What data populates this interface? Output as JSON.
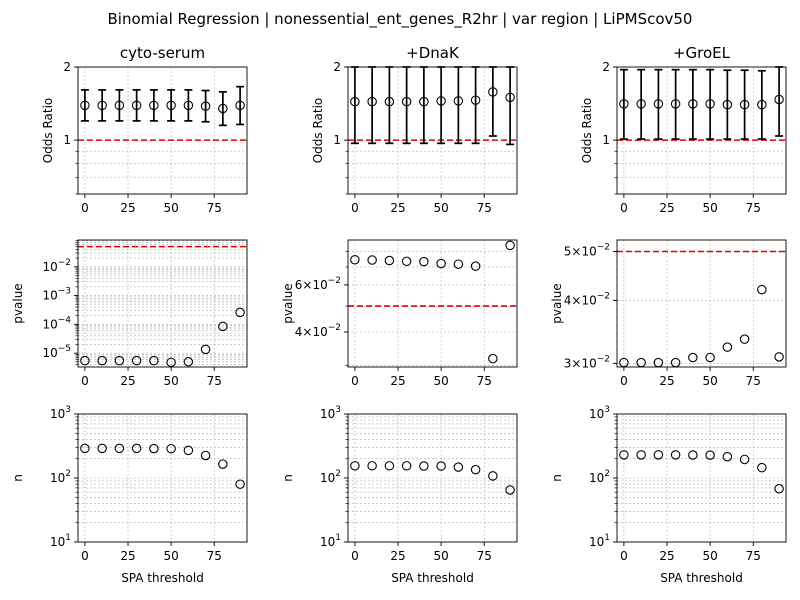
{
  "figure": {
    "title": "Binomial Regression | nonessential_ent_genes_R2hr | var region | LiPMScov50"
  },
  "chart_data": [
    {
      "type": "scatter",
      "panel": "odds-cyto-serum",
      "title": "cyto-serum",
      "xlabel": "",
      "ylabel": "Odds Ratio",
      "yscale": "log",
      "ylim": [
        0.6,
        2.0
      ],
      "xlim": [
        -4,
        94
      ],
      "yticks": [
        1,
        2
      ],
      "yticklabels": [
        "1",
        "2"
      ],
      "xticks": [
        0,
        25,
        50,
        75
      ],
      "xticklabels": [
        "0",
        "25",
        "50",
        "75"
      ],
      "reference_line": 1.0,
      "grid": true,
      "x": [
        0,
        10,
        20,
        30,
        40,
        50,
        60,
        70,
        80,
        90
      ],
      "y": [
        1.39,
        1.39,
        1.39,
        1.39,
        1.39,
        1.39,
        1.39,
        1.38,
        1.35,
        1.39
      ],
      "ci_low": [
        1.2,
        1.2,
        1.2,
        1.2,
        1.2,
        1.2,
        1.2,
        1.19,
        1.15,
        1.16
      ],
      "ci_high": [
        1.61,
        1.61,
        1.61,
        1.61,
        1.61,
        1.61,
        1.61,
        1.6,
        1.58,
        1.66
      ]
    },
    {
      "type": "scatter",
      "panel": "odds-dnak",
      "title": "+DnaK",
      "xlabel": "",
      "ylabel": "Odds Ratio",
      "yscale": "log",
      "ylim": [
        0.6,
        2.0
      ],
      "xlim": [
        -4,
        94
      ],
      "yticks": [
        1,
        2
      ],
      "yticklabels": [
        "1",
        "2"
      ],
      "xticks": [
        0,
        25,
        50,
        75
      ],
      "xticklabels": [
        "0",
        "25",
        "50",
        "75"
      ],
      "reference_line": 1.0,
      "grid": true,
      "x": [
        0,
        10,
        20,
        30,
        40,
        50,
        60,
        70,
        80,
        90
      ],
      "y": [
        1.44,
        1.44,
        1.44,
        1.44,
        1.44,
        1.45,
        1.45,
        1.46,
        1.58,
        1.5
      ],
      "ci_low": [
        0.97,
        0.97,
        0.97,
        0.97,
        0.97,
        0.97,
        0.97,
        0.97,
        1.04,
        0.96
      ],
      "ci_high": [
        2.0,
        2.0,
        2.0,
        2.0,
        2.0,
        2.0,
        2.0,
        2.0,
        2.0,
        2.0
      ]
    },
    {
      "type": "scatter",
      "panel": "odds-groel",
      "title": "+GroEL",
      "xlabel": "",
      "ylabel": "Odds Ratio",
      "yscale": "log",
      "ylim": [
        0.6,
        2.0
      ],
      "xlim": [
        -4,
        94
      ],
      "yticks": [
        1,
        2
      ],
      "yticklabels": [
        "1",
        "2"
      ],
      "xticks": [
        0,
        25,
        50,
        75
      ],
      "xticklabels": [
        "0",
        "25",
        "50",
        "75"
      ],
      "reference_line": 1.0,
      "grid": true,
      "x": [
        0,
        10,
        20,
        30,
        40,
        50,
        60,
        70,
        80,
        90
      ],
      "y": [
        1.41,
        1.41,
        1.41,
        1.41,
        1.41,
        1.41,
        1.4,
        1.4,
        1.4,
        1.47
      ],
      "ci_low": [
        1.01,
        1.01,
        1.01,
        1.01,
        1.01,
        1.01,
        1.01,
        1.01,
        1.01,
        1.04
      ],
      "ci_high": [
        1.95,
        1.95,
        1.95,
        1.95,
        1.95,
        1.95,
        1.94,
        1.94,
        1.93,
        2.0
      ]
    },
    {
      "type": "scatter",
      "panel": "pvalue-cyto-serum",
      "title": "",
      "xlabel": "",
      "ylabel": "pvalue",
      "yscale": "log",
      "ylim": [
        3.3e-06,
        0.085
      ],
      "xlim": [
        -4,
        94
      ],
      "yticks": [
        1e-05,
        0.0001,
        0.001,
        0.01
      ],
      "yticklabels": [
        "10",
        "10",
        "10",
        "10"
      ],
      "yticklabel_exponents": [
        "−5",
        "−4",
        "−3",
        "−2"
      ],
      "xticks": [
        0,
        25,
        50,
        75
      ],
      "xticklabels": [
        "0",
        "25",
        "50",
        "75"
      ],
      "reference_line": 0.05,
      "grid": true,
      "x": [
        0,
        10,
        20,
        30,
        40,
        50,
        60,
        70,
        80,
        90
      ],
      "y": [
        5.5e-06,
        5.5e-06,
        5.5e-06,
        5.5e-06,
        5.5e-06,
        4.8e-06,
        5e-06,
        1.35e-05,
        8.5e-05,
        0.00026
      ]
    },
    {
      "type": "scatter",
      "panel": "pvalue-dnak",
      "title": "",
      "xlabel": "",
      "ylabel": "pvalue",
      "yscale": "log",
      "ylim": [
        0.0296,
        0.0883
      ],
      "xlim": [
        -4,
        94
      ],
      "yticks": [
        0.04,
        0.06
      ],
      "yticklabels": [
        "4×10",
        "6×10"
      ],
      "yticklabel_exponents": [
        "−2",
        "−2"
      ],
      "xticks": [
        0,
        25,
        50,
        75
      ],
      "xticklabels": [
        "0",
        "25",
        "50",
        "75"
      ],
      "reference_line": 0.05,
      "grid": true,
      "x": [
        0,
        10,
        20,
        30,
        40,
        50,
        60,
        70,
        80,
        90
      ],
      "y": [
        0.0745,
        0.0743,
        0.074,
        0.0735,
        0.0733,
        0.0721,
        0.0717,
        0.0705,
        0.0318,
        0.0843
      ]
    },
    {
      "type": "scatter",
      "panel": "pvalue-groel",
      "title": "",
      "xlabel": "",
      "ylabel": "pvalue",
      "yscale": "log",
      "ylim": [
        0.0295,
        0.0527
      ],
      "xlim": [
        -4,
        94
      ],
      "yticks": [
        0.03,
        0.04,
        0.05
      ],
      "yticklabels": [
        "3×10",
        "4×10",
        "5×10"
      ],
      "yticklabel_exponents": [
        "−2",
        "−2",
        "−2"
      ],
      "xticks": [
        0,
        25,
        50,
        75
      ],
      "xticklabels": [
        "0",
        "25",
        "50",
        "75"
      ],
      "reference_line": 0.05,
      "grid": true,
      "x": [
        0,
        10,
        20,
        30,
        40,
        50,
        60,
        70,
        80,
        90
      ],
      "y": [
        0.0301,
        0.0301,
        0.0301,
        0.0301,
        0.0308,
        0.0308,
        0.0323,
        0.0335,
        0.042,
        0.0309
      ]
    },
    {
      "type": "scatter",
      "panel": "n-cyto-serum",
      "title": "",
      "xlabel": "SPA threshold",
      "ylabel": "n",
      "yscale": "log",
      "ylim": [
        10,
        1000
      ],
      "xlim": [
        -4,
        94
      ],
      "yticks": [
        10,
        100,
        1000
      ],
      "yticklabels": [
        "10",
        "10",
        "10"
      ],
      "yticklabel_exponents": [
        "1",
        "2",
        "3"
      ],
      "xticks": [
        0,
        25,
        50,
        75
      ],
      "xticklabels": [
        "0",
        "25",
        "50",
        "75"
      ],
      "grid": true,
      "x": [
        0,
        10,
        20,
        30,
        40,
        50,
        60,
        70,
        80,
        90
      ],
      "y": [
        290,
        290,
        290,
        290,
        288,
        287,
        270,
        225,
        165,
        80
      ]
    },
    {
      "type": "scatter",
      "panel": "n-dnak",
      "title": "",
      "xlabel": "SPA threshold",
      "ylabel": "n",
      "yscale": "log",
      "ylim": [
        10,
        1000
      ],
      "xlim": [
        -4,
        94
      ],
      "yticks": [
        10,
        100,
        1000
      ],
      "yticklabels": [
        "10",
        "10",
        "10"
      ],
      "yticklabel_exponents": [
        "1",
        "2",
        "3"
      ],
      "xticks": [
        0,
        25,
        50,
        75
      ],
      "xticklabels": [
        "0",
        "25",
        "50",
        "75"
      ],
      "grid": true,
      "x": [
        0,
        10,
        20,
        30,
        40,
        50,
        60,
        70,
        80,
        90
      ],
      "y": [
        155,
        155,
        155,
        155,
        154,
        154,
        148,
        135,
        108,
        65
      ]
    },
    {
      "type": "scatter",
      "panel": "n-groel",
      "title": "",
      "xlabel": "SPA threshold",
      "ylabel": "n",
      "yscale": "log",
      "ylim": [
        10,
        1000
      ],
      "xlim": [
        -4,
        94
      ],
      "yticks": [
        10,
        100,
        1000
      ],
      "yticklabels": [
        "10",
        "10",
        "10"
      ],
      "yticklabel_exponents": [
        "1",
        "2",
        "3"
      ],
      "xticks": [
        0,
        25,
        50,
        75
      ],
      "xticklabels": [
        "0",
        "25",
        "50",
        "75"
      ],
      "grid": true,
      "x": [
        0,
        10,
        20,
        30,
        40,
        50,
        60,
        70,
        80,
        90
      ],
      "y": [
        230,
        230,
        230,
        230,
        229,
        228,
        215,
        195,
        145,
        68
      ]
    }
  ]
}
